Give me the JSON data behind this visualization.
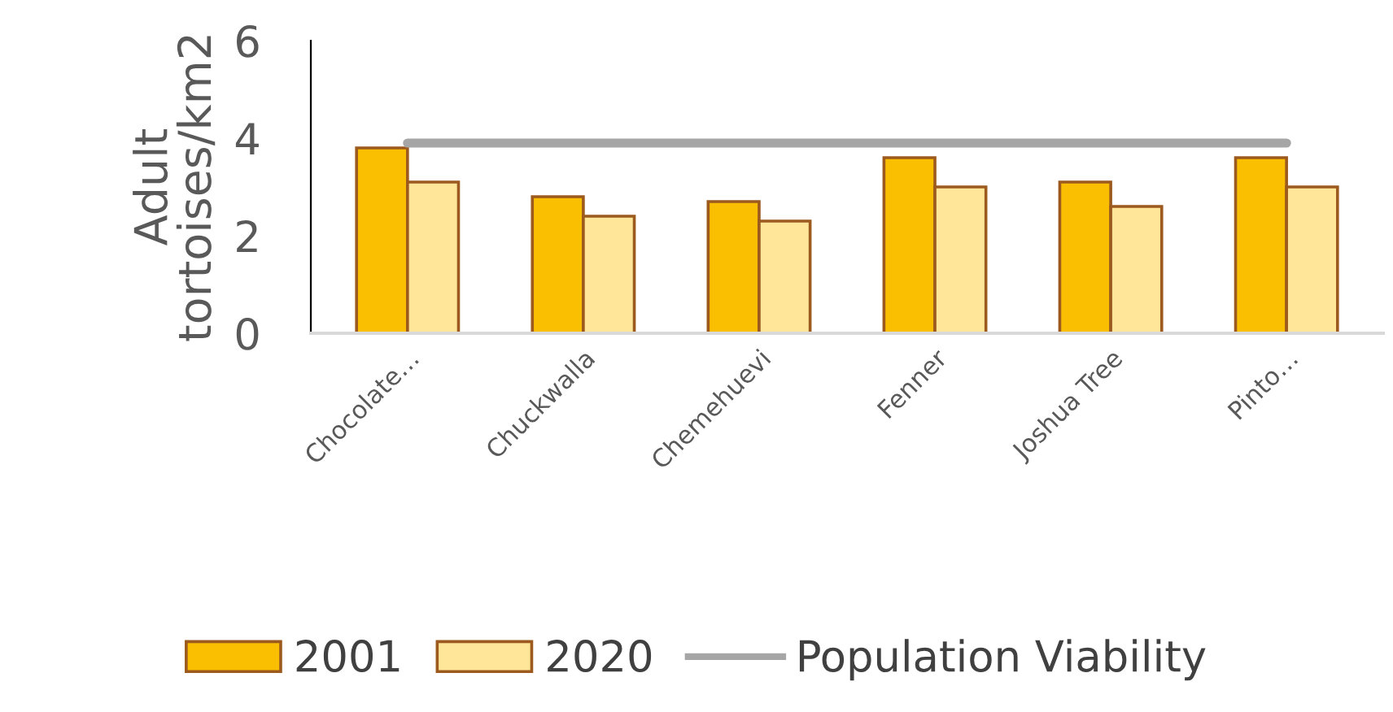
{
  "chart_data": {
    "type": "bar",
    "ylabel": "Adult\ntortoises/km2",
    "categories": [
      "Chocolate…",
      "Chuckwalla",
      "Chemehuevi",
      "Fenner",
      "Joshua Tree",
      "Pinto…"
    ],
    "series": [
      {
        "name": "2001",
        "color": "#f9bf00",
        "values": [
          3.8,
          2.8,
          2.7,
          3.6,
          3.1,
          3.6
        ]
      },
      {
        "name": "2020",
        "color": "#ffe699",
        "values": [
          3.1,
          2.4,
          2.3,
          3.0,
          2.6,
          3.0
        ]
      },
      {
        "name": "Population Viability",
        "type": "line",
        "color": "#a6a6a6",
        "values": [
          3.9,
          3.9,
          3.9,
          3.9,
          3.9,
          3.9
        ]
      }
    ],
    "ylim": [
      0,
      6
    ],
    "yticks": [
      0,
      2,
      4,
      6
    ],
    "grid": false,
    "legend": "bottom"
  }
}
